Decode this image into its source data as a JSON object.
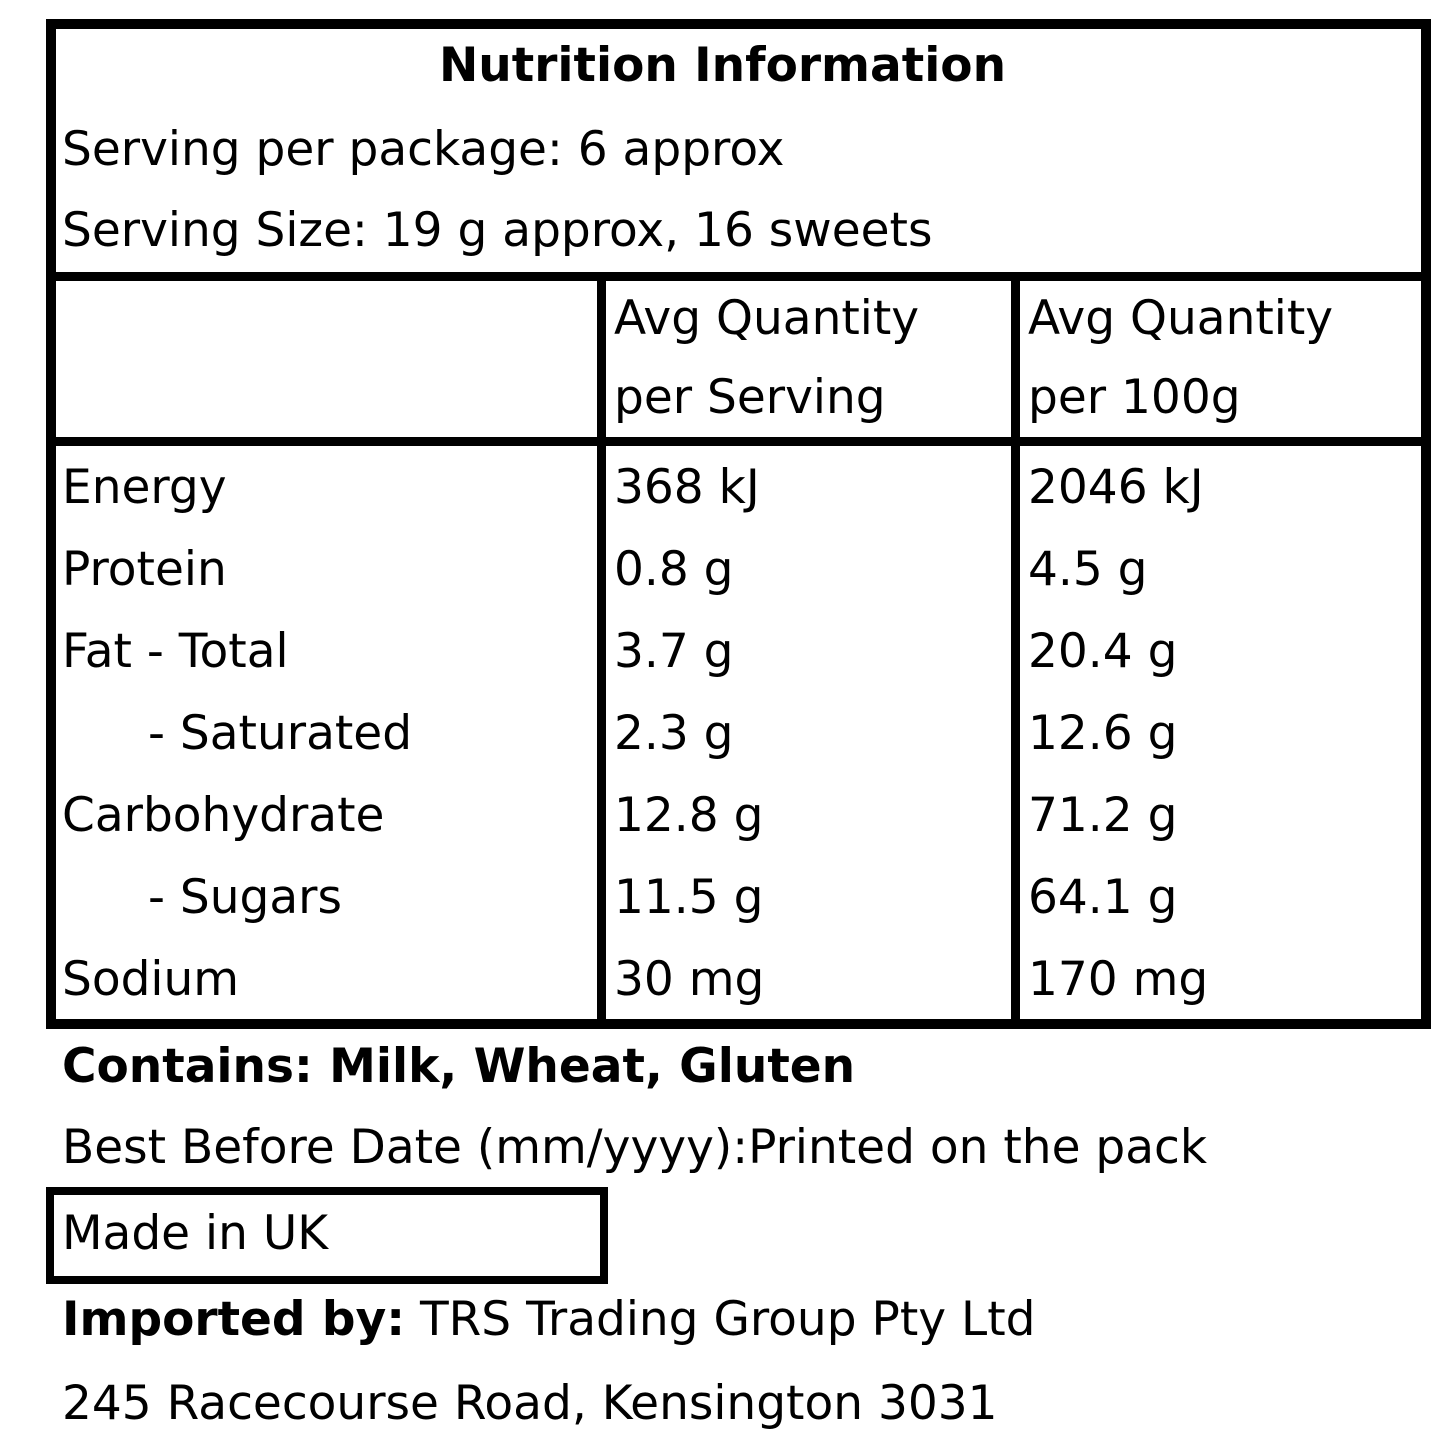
{
  "header": {
    "title": "Nutrition Information",
    "serving_per_package": "Serving per package: 6 approx",
    "serving_size": "Serving Size: 19 g approx, 16 sweets"
  },
  "columns": {
    "per_serving": [
      "Avg Quantity",
      "per Serving"
    ],
    "per_100g": [
      "Avg Quantity",
      "per 100g"
    ]
  },
  "rows": [
    {
      "label": "Energy",
      "per_serving": "368 kJ",
      "per_100g": "2046 kJ"
    },
    {
      "label": "Protein",
      "per_serving": "0.8 g",
      "per_100g": "4.5 g"
    },
    {
      "label": "Fat - Total",
      "per_serving": "3.7 g",
      "per_100g": "20.4 g"
    },
    {
      "label": "- Saturated",
      "per_serving": "2.3 g",
      "per_100g": "12.6 g"
    },
    {
      "label": "Carbohydrate",
      "per_serving": "12.8 g",
      "per_100g": "71.2 g"
    },
    {
      "label": "- Sugars",
      "per_serving": "11.5 g",
      "per_100g": "64.1 g"
    },
    {
      "label": "Sodium",
      "per_serving": "30 mg",
      "per_100g": "170 mg"
    }
  ],
  "footer": {
    "contains": "Contains: Milk, Wheat, Gluten",
    "best_before": "Best Before Date (mm/yyyy):Printed on the pack",
    "made_in": "Made in UK",
    "imported_label": "Imported by:",
    "importer": " TRS Trading Group Pty Ltd",
    "address": "245 Racecourse Road, Kensington 3031"
  }
}
